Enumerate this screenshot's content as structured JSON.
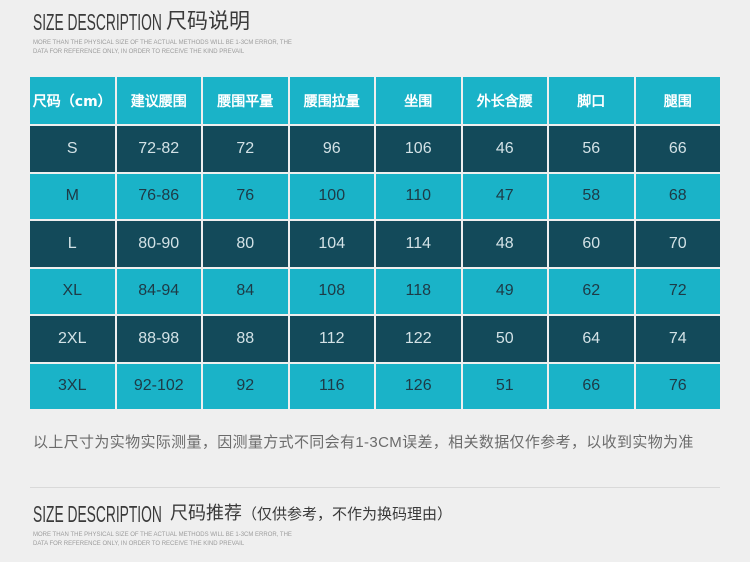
{
  "title_section": {
    "title_en": "SIZE DESCRIPTION",
    "title_cn": "尺码说明",
    "subtitle_line1": "MORE THAN THE PHYSICAL SIZE OF THE ACTUAL METHODS WILL BE 1-3CM ERROR, THE",
    "subtitle_line2": "DATA FOR REFERENCE ONLY, IN ORDER TO RECEIVE THE KIND PREVAIL"
  },
  "size_table": {
    "columns": [
      "尺码（cm）",
      "建议腰围",
      "腰围平量",
      "腰围拉量",
      "坐围",
      "外长含腰",
      "脚口",
      "腿围"
    ],
    "rows": [
      [
        "S",
        "72-82",
        "72",
        "96",
        "106",
        "46",
        "56",
        "66"
      ],
      [
        "M",
        "76-86",
        "76",
        "100",
        "110",
        "47",
        "58",
        "68"
      ],
      [
        "L",
        "80-90",
        "80",
        "104",
        "114",
        "48",
        "60",
        "70"
      ],
      [
        "XL",
        "84-94",
        "84",
        "108",
        "118",
        "49",
        "62",
        "72"
      ],
      [
        "2XL",
        "88-98",
        "88",
        "112",
        "122",
        "50",
        "64",
        "74"
      ],
      [
        "3XL",
        "92-102",
        "92",
        "116",
        "126",
        "51",
        "66",
        "76"
      ]
    ]
  },
  "note": "以上尺寸为实物实际测量，因测量方式不同会有1-3CM误差，相关数据仅作参考，以收到实物为准",
  "recommend_section": {
    "title_en": "SIZE DESCRIPTION",
    "title_cn": "尺码推荐",
    "title_note": "（仅供参考，不作为换码理由）",
    "subtitle_line1": "MORE THAN THE PHYSICAL SIZE OF THE ACTUAL METHODS WILL BE 1-3CM ERROR, THE",
    "subtitle_line2": "DATA FOR REFERENCE ONLY, IN ORDER TO RECEIVE THE KIND PREVAIL"
  },
  "colors": {
    "page_background": "#efefef",
    "header_row": "#1ab3c8",
    "light_row": "#1ab3c8",
    "dark_row": "#134a5a",
    "header_text": "#ffffff",
    "light_row_text": "#1e3a46",
    "dark_row_text": "#d3e2e6",
    "title_text": "#3a3a3a",
    "note_text": "#6b6b6b",
    "subtitle_text": "#9c9c9c"
  }
}
